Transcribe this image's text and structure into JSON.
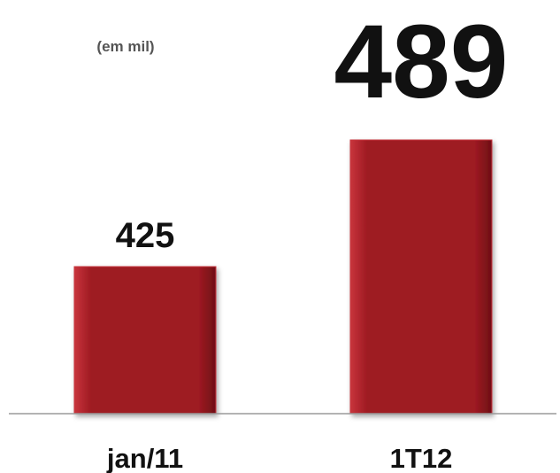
{
  "chart_data": {
    "type": "bar",
    "unit_note": "(em mil)",
    "categories": [
      "jan/11",
      "1T12"
    ],
    "values": [
      425,
      489
    ],
    "value_labels": [
      "425",
      "489"
    ],
    "title": "",
    "xlabel": "",
    "ylabel": "",
    "grid": false,
    "legend": "none",
    "colors": {
      "bar": "#9e1a22",
      "bar_highlight": "#c8343c",
      "bar_shadow": "#6e0f15",
      "axis": "#9a9a9a"
    }
  }
}
